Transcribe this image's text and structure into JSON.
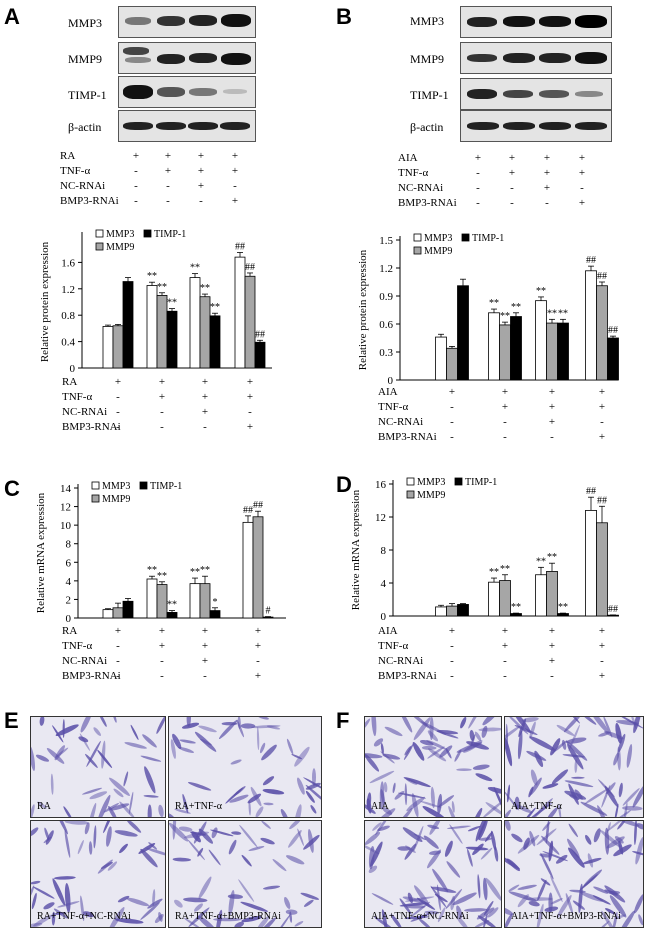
{
  "panels": {
    "A": {
      "letter": "A",
      "blot_labels": [
        "MMP3",
        "MMP9",
        "TIMP-1",
        "β-actin"
      ],
      "conditions": [
        {
          "label": "RA",
          "values": [
            "+",
            "+",
            "+",
            "+"
          ]
        },
        {
          "label": "TNF-α",
          "values": [
            "-",
            "+",
            "+",
            "+"
          ]
        },
        {
          "label": "NC-RNAi",
          "values": [
            "-",
            "-",
            "+",
            "-"
          ]
        },
        {
          "label": "BMP3-RNAi",
          "values": [
            "-",
            "-",
            "-",
            "+"
          ]
        }
      ]
    },
    "B": {
      "letter": "B",
      "blot_labels": [
        "MMP3",
        "MMP9",
        "TIMP-1",
        "β-actin"
      ],
      "conditions": [
        {
          "label": "AIA",
          "values": [
            "+",
            "+",
            "+",
            "+"
          ]
        },
        {
          "label": "TNF-α",
          "values": [
            "-",
            "+",
            "+",
            "+"
          ]
        },
        {
          "label": "NC-RNAi",
          "values": [
            "-",
            "-",
            "+",
            "-"
          ]
        },
        {
          "label": "BMP3-RNAi",
          "values": [
            "-",
            "-",
            "-",
            "+"
          ]
        }
      ]
    },
    "C": {
      "letter": "C"
    },
    "D": {
      "letter": "D"
    },
    "E": {
      "letter": "E",
      "photo_labels": [
        "RA",
        "RA+TNF-α",
        "RA+TNF-α+NC-RNAi",
        "RA+TNF-α+BMP3-RNAi"
      ]
    },
    "F": {
      "letter": "F",
      "photo_labels": [
        "AIA",
        "AIA+TNF-α",
        "AIA+TNF-α+NC-RNAi",
        "AIA+TNF-α+BMP3-RNAi"
      ]
    }
  },
  "colors": {
    "mmp3": "#ffffff",
    "mmp9": "#a6a6a6",
    "timp1": "#000000",
    "cell_stain": "#5a4fa8"
  },
  "chart_data": [
    {
      "panel": "A",
      "type": "bar",
      "ylabel": "Relative protein expression",
      "ylim": [
        0,
        2.0
      ],
      "yticks": [
        0,
        0.4,
        0.8,
        1.2,
        1.6
      ],
      "ytick_labels": [
        "0",
        "0.4",
        "0.8",
        "1.2",
        "1.6"
      ],
      "legend": [
        "MMP3",
        "TIMP-1",
        "MMP9"
      ],
      "series": [
        {
          "name": "MMP3",
          "values": [
            0.63,
            1.25,
            1.37,
            1.68
          ],
          "err": [
            0.02,
            0.05,
            0.06,
            0.07
          ],
          "annot": [
            "",
            "**",
            "**",
            "##"
          ]
        },
        {
          "name": "MMP9",
          "values": [
            0.64,
            1.1,
            1.08,
            1.39
          ],
          "err": [
            0.02,
            0.04,
            0.04,
            0.05
          ],
          "annot": [
            "",
            "**",
            "**",
            "##"
          ]
        },
        {
          "name": "TIMP-1",
          "values": [
            1.31,
            0.86,
            0.79,
            0.39
          ],
          "err": [
            0.06,
            0.04,
            0.04,
            0.03
          ],
          "annot": [
            "",
            "**",
            "**",
            "##"
          ]
        }
      ],
      "conditions": [
        {
          "label": "RA",
          "values": [
            "+",
            "+",
            "+",
            "+"
          ]
        },
        {
          "label": "TNF-α",
          "values": [
            "-",
            "+",
            "+",
            "+"
          ]
        },
        {
          "label": "NC-RNAi",
          "values": [
            "-",
            "-",
            "+",
            "-"
          ]
        },
        {
          "label": "BMP3-RNAi",
          "values": [
            "-",
            "-",
            "-",
            "+"
          ]
        }
      ]
    },
    {
      "panel": "B",
      "type": "bar",
      "ylabel": "Relative protein expression",
      "ylim": [
        0,
        1.5
      ],
      "yticks": [
        0,
        0.3,
        0.6,
        0.9,
        1.2,
        1.5
      ],
      "ytick_labels": [
        "0",
        "0.3",
        "0.6",
        "0.9",
        "1.2",
        "1.5"
      ],
      "legend": [
        "MMP3",
        "TIMP-1",
        "MMP9"
      ],
      "series": [
        {
          "name": "MMP3",
          "values": [
            0.46,
            0.72,
            0.85,
            1.17
          ],
          "err": [
            0.03,
            0.04,
            0.04,
            0.05
          ],
          "annot": [
            "",
            "**",
            "**",
            "##"
          ]
        },
        {
          "name": "MMP9",
          "values": [
            0.34,
            0.59,
            0.61,
            1.01
          ],
          "err": [
            0.02,
            0.03,
            0.04,
            0.04
          ],
          "annot": [
            "",
            "**",
            "**",
            "##"
          ]
        },
        {
          "name": "TIMP-1",
          "values": [
            1.01,
            0.68,
            0.61,
            0.45
          ],
          "err": [
            0.07,
            0.04,
            0.04,
            0.02
          ],
          "annot": [
            "",
            "**",
            "**",
            "##"
          ]
        }
      ],
      "conditions": [
        {
          "label": "AIA",
          "values": [
            "+",
            "+",
            "+",
            "+"
          ]
        },
        {
          "label": "TNF-α",
          "values": [
            "-",
            "+",
            "+",
            "+"
          ]
        },
        {
          "label": "NC-RNAi",
          "values": [
            "-",
            "-",
            "+",
            "-"
          ]
        },
        {
          "label": "BMP3-RNAi",
          "values": [
            "-",
            "-",
            "-",
            "+"
          ]
        }
      ]
    },
    {
      "panel": "C",
      "type": "bar",
      "ylabel": "Relative mRNA expression",
      "ylim": [
        0,
        14
      ],
      "yticks": [
        0,
        2,
        4,
        6,
        8,
        10,
        12,
        14
      ],
      "ytick_labels": [
        "0",
        "2",
        "4",
        "6",
        "8",
        "10",
        "12",
        "14"
      ],
      "legend": [
        "MMP3",
        "TIMP-1",
        "MMP9"
      ],
      "series": [
        {
          "name": "MMP3",
          "values": [
            0.9,
            4.2,
            3.7,
            10.3
          ],
          "err": [
            0.1,
            0.3,
            0.6,
            0.7
          ],
          "annot": [
            "",
            "**",
            "**",
            "##"
          ]
        },
        {
          "name": "MMP9",
          "values": [
            1.1,
            3.6,
            3.7,
            10.9
          ],
          "err": [
            0.5,
            0.3,
            0.8,
            0.6
          ],
          "annot": [
            "",
            "**",
            "**",
            "##"
          ]
        },
        {
          "name": "TIMP-1",
          "values": [
            1.8,
            0.6,
            0.8,
            0.1
          ],
          "err": [
            0.3,
            0.2,
            0.3,
            0.05
          ],
          "annot": [
            "",
            "**",
            "*",
            "#"
          ]
        }
      ],
      "conditions": [
        {
          "label": "RA",
          "values": [
            "+",
            "+",
            "+",
            "+"
          ]
        },
        {
          "label": "TNF-α",
          "values": [
            "-",
            "+",
            "+",
            "+"
          ]
        },
        {
          "label": "NC-RNAi",
          "values": [
            "-",
            "-",
            "+",
            "-"
          ]
        },
        {
          "label": "BMP3-RNAi",
          "values": [
            "-",
            "-",
            "-",
            "+"
          ]
        }
      ]
    },
    {
      "panel": "D",
      "type": "bar",
      "ylabel": "Relative mRNA expression",
      "ylim": [
        0,
        16
      ],
      "yticks": [
        0,
        4,
        8,
        12,
        16
      ],
      "ytick_labels": [
        "0",
        "4",
        "8",
        "12",
        "16"
      ],
      "legend": [
        "MMP3",
        "TIMP-1",
        "MMP9"
      ],
      "series": [
        {
          "name": "MMP3",
          "values": [
            1.1,
            4.1,
            5.0,
            12.8
          ],
          "err": [
            0.2,
            0.5,
            0.9,
            1.6
          ],
          "annot": [
            "",
            "**",
            "**",
            "##"
          ]
        },
        {
          "name": "MMP9",
          "values": [
            1.2,
            4.3,
            5.4,
            11.3
          ],
          "err": [
            0.3,
            0.7,
            1.0,
            2.0
          ],
          "annot": [
            "",
            "**",
            "**",
            "##"
          ]
        },
        {
          "name": "TIMP-1",
          "values": [
            1.4,
            0.3,
            0.3,
            0.1
          ],
          "err": [
            0.1,
            0.05,
            0.05,
            0.03
          ],
          "annot": [
            "",
            "**",
            "**",
            "##"
          ]
        }
      ],
      "conditions": [
        {
          "label": "AIA",
          "values": [
            "+",
            "+",
            "+",
            "+"
          ]
        },
        {
          "label": "TNF-α",
          "values": [
            "-",
            "+",
            "+",
            "+"
          ]
        },
        {
          "label": "NC-RNAi",
          "values": [
            "-",
            "-",
            "+",
            "-"
          ]
        },
        {
          "label": "BMP3-RNAi",
          "values": [
            "-",
            "-",
            "-",
            "+"
          ]
        }
      ]
    }
  ]
}
